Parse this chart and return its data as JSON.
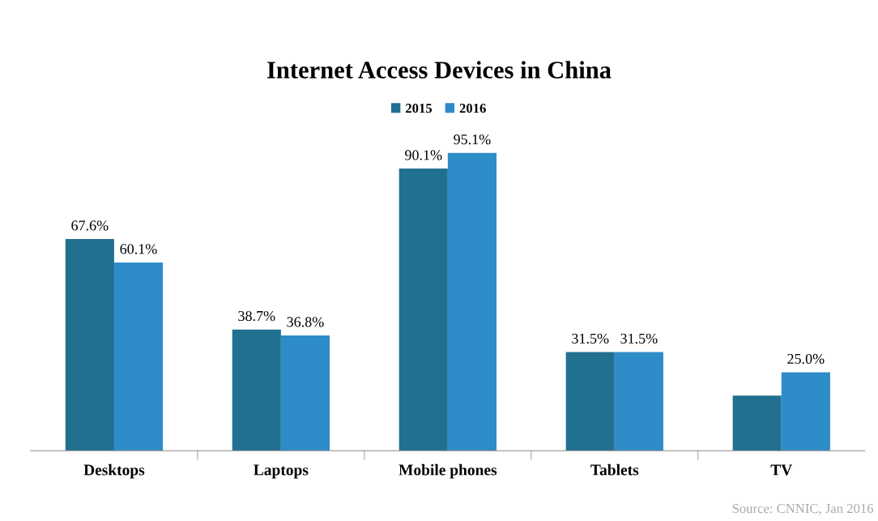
{
  "chart_data": {
    "type": "bar",
    "title": "Internet Access Devices in China",
    "categories": [
      "Desktops",
      "Laptops",
      "Mobile phones",
      "Tablets",
      "TV"
    ],
    "series": [
      {
        "name": "2015",
        "color": "#21708f",
        "values": [
          67.6,
          38.7,
          90.1,
          31.5,
          17.6
        ],
        "value_labels": [
          "67.6%",
          "38.7%",
          "90.1%",
          "31.5%",
          null
        ]
      },
      {
        "name": "2016",
        "color": "#2e8cc9",
        "values": [
          60.1,
          36.8,
          95.1,
          31.5,
          25.0
        ],
        "value_labels": [
          "60.1%",
          "36.8%",
          "95.1%",
          "31.5%",
          "25.0%"
        ]
      }
    ],
    "legend": "top",
    "grid": false,
    "tick_labels": "x",
    "annotations": [
      "Source: CNNIC, Jan 2016"
    ]
  }
}
